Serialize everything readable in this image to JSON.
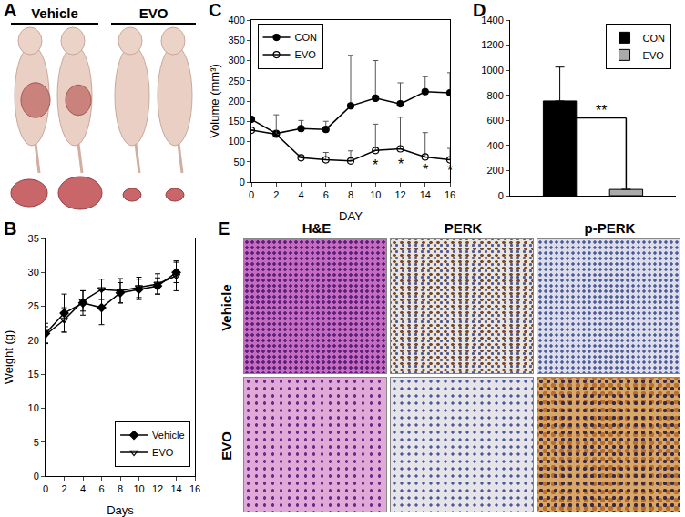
{
  "panels": {
    "A": {
      "panel": "A",
      "groups": [
        "Vehicle",
        "EVO"
      ]
    },
    "E": {
      "panel": "E",
      "columns": [
        "H&E",
        "PERK",
        "p-PERK"
      ],
      "rows": [
        "Vehicle",
        "EVO"
      ]
    }
  },
  "chart_data": [
    {
      "panel": "B",
      "type": "line",
      "xlabel": "Days",
      "ylabel": "Weight (g)",
      "x": [
        0,
        2,
        4,
        6,
        8,
        10,
        12,
        14
      ],
      "xlim": [
        0,
        16
      ],
      "xticks": [
        0,
        2,
        4,
        6,
        8,
        10,
        12,
        14,
        16
      ],
      "ylim": [
        0,
        35
      ],
      "yticks": [
        0,
        5,
        10,
        15,
        20,
        25,
        30,
        35
      ],
      "legend": "bottom right",
      "series": [
        {
          "name": "Vehicle",
          "color": "#000000",
          "marker": "diamond",
          "values": [
            21,
            24,
            25.5,
            24.8,
            27,
            27.5,
            28,
            30
          ],
          "errors": [
            1.5,
            2.8,
            1.8,
            2.5,
            1.5,
            1.5,
            1.2,
            1.5
          ]
        },
        {
          "name": "EVO",
          "color": "#000000",
          "marker": "triangle-down-open",
          "values": [
            20.8,
            23,
            25.8,
            27.5,
            27.3,
            27.8,
            28.3,
            29.5
          ],
          "errors": [
            1.2,
            1.8,
            1.5,
            1.5,
            1.8,
            1.5,
            1.5,
            2.2
          ]
        }
      ]
    },
    {
      "panel": "C",
      "type": "line",
      "xlabel": "DAY",
      "ylabel": "Volume (mm³)",
      "x": [
        0,
        2,
        4,
        6,
        8,
        10,
        12,
        14,
        16
      ],
      "xlim": [
        0,
        16
      ],
      "xticks": [
        0,
        2,
        4,
        6,
        8,
        10,
        12,
        14,
        16
      ],
      "ylim": [
        0,
        400
      ],
      "yticks": [
        0,
        50,
        100,
        150,
        200,
        250,
        300,
        350,
        400
      ],
      "legend": "top left",
      "series": [
        {
          "name": "CON",
          "color": "#000000",
          "marker": "circle",
          "values": [
            155,
            120,
            132,
            130,
            188,
            207,
            193,
            223,
            220
          ],
          "errors_up": [
            0,
            5,
            20,
            20,
            125,
            93,
            52,
            37,
            50
          ]
        },
        {
          "name": "EVO",
          "color": "#000000",
          "marker": "circle-open",
          "values": [
            128,
            118,
            60,
            55,
            52,
            78,
            82,
            62,
            55
          ],
          "errors_up": [
            0,
            48,
            5,
            18,
            25,
            65,
            78,
            60,
            28
          ]
        }
      ],
      "annotations": [
        {
          "x": 10,
          "y": 42,
          "text": "*"
        },
        {
          "x": 12,
          "y": 43,
          "text": "*"
        },
        {
          "x": 14,
          "y": 30,
          "text": "*"
        },
        {
          "x": 16,
          "y": 28,
          "text": "*"
        }
      ]
    },
    {
      "panel": "D",
      "type": "bar",
      "categories": [
        null,
        null
      ],
      "ylim": [
        0,
        1400
      ],
      "yticks": [
        0,
        200,
        400,
        600,
        800,
        1000,
        1200,
        1400
      ],
      "tick_labels": "y",
      "legend": "top right",
      "series": [
        {
          "name": "CON",
          "color": "#000000",
          "values": [
            755,
            null
          ],
          "errors_up": [
            270,
            null
          ]
        },
        {
          "name": "EVO",
          "color": "#aaaaaa",
          "values": [
            null,
            50
          ],
          "errors_up": [
            null,
            10
          ]
        }
      ],
      "annotations": [
        {
          "text": "**",
          "y": 620
        }
      ]
    }
  ]
}
